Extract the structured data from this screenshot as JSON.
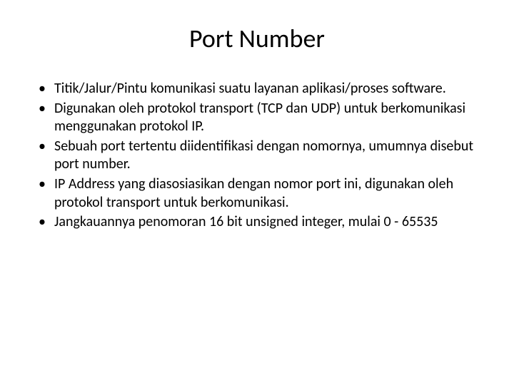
{
  "slide": {
    "title": "Port Number",
    "title_fontsize": 36,
    "body_fontsize": 20,
    "background_color": "#ffffff",
    "text_color": "#000000",
    "bullets": [
      "Titik/Jalur/Pintu komunikasi suatu layanan aplikasi/proses software.",
      "Digunakan oleh protokol transport (TCP dan UDP) untuk berkomunikasi menggunakan protokol IP.",
      "Sebuah port tertentu diidentifikasi dengan nomornya, umumnya disebut port number.",
      "IP Address yang diasosiasikan dengan nomor port ini, digunakan oleh protokol transport untuk berkomunikasi.",
      "Jangkauannya penomoran 16 bit unsigned integer, mulai 0 - 65535"
    ]
  }
}
